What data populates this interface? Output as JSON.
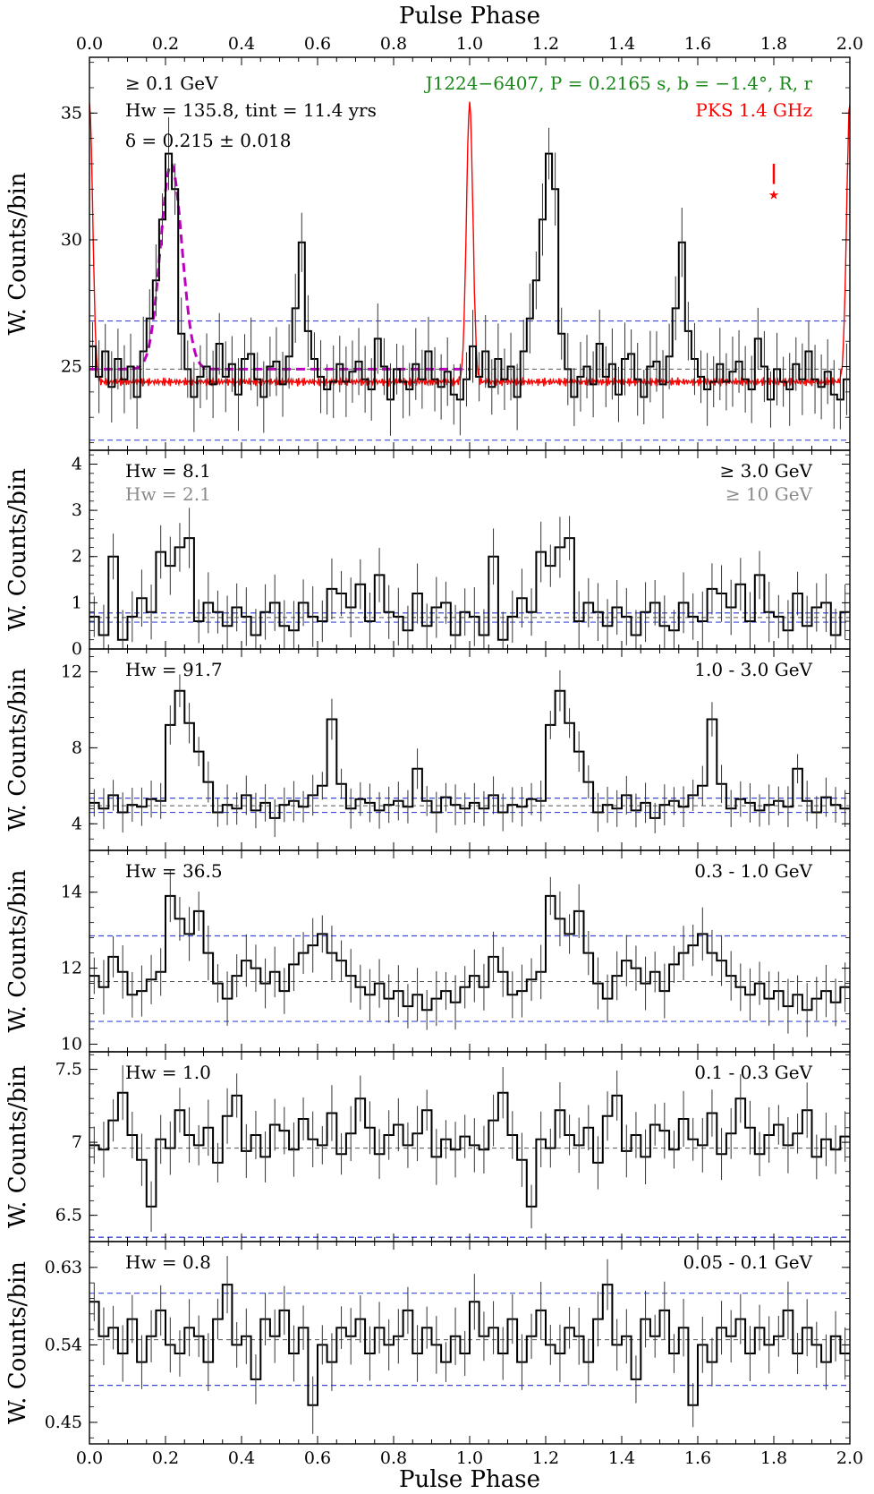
{
  "figure": {
    "x_top_label": "Pulse Phase",
    "x_bottom_label": "Pulse Phase",
    "y_label": "W. Counts/bin"
  },
  "chart_data": [
    {
      "type": "line",
      "panel": "all-energy",
      "ylabel": "W. Counts/bin",
      "xlabel": "Pulse Phase",
      "xlim": [
        0.0,
        2.0
      ],
      "ylim": [
        21.7,
        37.2
      ],
      "yticks": [
        25,
        30,
        35
      ],
      "xticks": [
        0.0,
        0.2,
        0.4,
        0.6,
        0.8,
        1.0,
        1.2,
        1.4,
        1.6,
        1.8,
        2.0
      ],
      "annotations": {
        "energy": "≥ 0.1 GeV",
        "hw": "Hw = 135.8, tint = 11.4 yrs",
        "delta": "δ = 0.215 ± 0.018",
        "pulsar": "J1224−6407, P = 0.2165 s, b = −1.4°, R, r",
        "radio": "PKS 1.4 GHz"
      },
      "background_level": 24.9,
      "bounds": [
        22.1,
        26.8
      ],
      "series": [
        {
          "name": "gamma-ray",
          "color": "#000000",
          "err": 1.2,
          "values": [
            25.8,
            24.6,
            25.6,
            24.2,
            25.3,
            24.5,
            25.0,
            23.8,
            25.6,
            26.9,
            28.4,
            30.8,
            33.4,
            32.0,
            26.3,
            24.9,
            23.8,
            24.6,
            25.0,
            24.3,
            25.9,
            24.6,
            25.1,
            23.9,
            25.3,
            25.5,
            24.5,
            23.8,
            25.0,
            25.2,
            24.3,
            25.4,
            27.3,
            29.9,
            26.4,
            25.3,
            24.6,
            24.1,
            24.4,
            25.1,
            24.4,
            24.8,
            25.2,
            24.5,
            24.1,
            26.1,
            25.0,
            23.7,
            24.9,
            24.4,
            24.1,
            25.1,
            24.5,
            25.6,
            24.5,
            24.2,
            24.8,
            23.9,
            23.7,
            24.5
          ]
        },
        {
          "name": "PKS 1.4 GHz",
          "color": "#ff0000"
        }
      ],
      "fit": {
        "name": "gaussian",
        "color": "#c000c0",
        "center": 0.215,
        "sigma": 0.028,
        "amplitude": 8.1,
        "base": 24.9
      }
    },
    {
      "type": "line",
      "panel": "≥ 3.0 GeV",
      "ylabel": "W. Counts/bin",
      "xlim": [
        0.0,
        2.0
      ],
      "ylim": [
        0.0,
        4.3
      ],
      "yticks": [
        0,
        1,
        2,
        3,
        4
      ],
      "annotations": {
        "hw": "Hw = 8.1",
        "hw2": "Hw = 2.1",
        "energy": "≥ 3.0 GeV",
        "energy2": "≥ 10 GeV"
      },
      "background_level": 0.68,
      "bounds": [
        0.58,
        0.78
      ],
      "series": [
        {
          "name": ">=3 GeV",
          "color": "#000000",
          "err": 0.55,
          "values": [
            0.7,
            0.3,
            2.0,
            0.2,
            0.7,
            1.1,
            0.8,
            2.1,
            1.8,
            2.2,
            2.4,
            0.6,
            1.0,
            0.8,
            0.5,
            0.9,
            0.7,
            0.3,
            0.8,
            1.0,
            0.5,
            0.4,
            1.0,
            0.7,
            0.6,
            1.3,
            1.2,
            0.9,
            1.4,
            0.6,
            1.6,
            0.8,
            0.7,
            0.4,
            1.2,
            0.5,
            0.9,
            1.0,
            0.3,
            0.8
          ]
        }
      ]
    },
    {
      "type": "line",
      "panel": "1.0 - 3.0 GeV",
      "ylabel": "W. Counts/bin",
      "xlim": [
        0.0,
        2.0
      ],
      "ylim": [
        2.6,
        13.2
      ],
      "yticks": [
        4,
        8,
        12
      ],
      "annotations": {
        "hw": "Hw = 91.7",
        "energy": "1.0 - 3.0 GeV"
      },
      "background_level": 4.95,
      "bounds": [
        4.6,
        5.35
      ],
      "series": [
        {
          "name": "1-3 GeV",
          "color": "#000000",
          "err": 0.9,
          "values": [
            5.1,
            4.8,
            5.5,
            4.6,
            5.0,
            4.9,
            5.3,
            5.2,
            9.2,
            11.0,
            9.3,
            7.8,
            6.2,
            4.6,
            5.0,
            4.8,
            5.5,
            4.7,
            5.1,
            4.3,
            5.0,
            5.2,
            4.9,
            5.5,
            6.0,
            9.5,
            6.1,
            4.8,
            5.3,
            5.1,
            4.7,
            5.0,
            5.2,
            4.9,
            6.9,
            5.2,
            4.6,
            5.4,
            5.0,
            4.8
          ]
        }
      ]
    },
    {
      "type": "line",
      "panel": "0.3 - 1.0 GeV",
      "ylabel": "W. Counts/bin",
      "xlim": [
        0.0,
        2.0
      ],
      "ylim": [
        9.8,
        15.1
      ],
      "yticks": [
        10,
        12,
        14
      ],
      "annotations": {
        "hw": "Hw = 36.5",
        "energy": "0.3 - 1.0 GeV"
      },
      "background_level": 11.65,
      "bounds": [
        10.6,
        12.85
      ],
      "series": [
        {
          "name": "0.3-1 GeV",
          "color": "#000000",
          "err": 0.6,
          "values": [
            11.8,
            11.5,
            12.3,
            11.9,
            11.3,
            11.4,
            11.7,
            11.9,
            13.9,
            13.3,
            12.9,
            13.5,
            12.4,
            11.6,
            11.2,
            11.8,
            12.2,
            12.0,
            11.6,
            11.9,
            11.4,
            12.1,
            12.4,
            12.6,
            12.9,
            12.4,
            12.2,
            11.8,
            11.5,
            11.3,
            11.6,
            11.2,
            11.4,
            11.0,
            11.3,
            10.9,
            11.2,
            11.4,
            11.1,
            11.5
          ]
        }
      ]
    },
    {
      "type": "line",
      "panel": "0.1 - 0.3 GeV",
      "ylabel": "W. Counts/bin",
      "xlim": [
        0.0,
        2.0
      ],
      "ylim": [
        6.32,
        7.62
      ],
      "yticks": [
        6.5,
        7.0,
        7.5
      ],
      "annotations": {
        "hw": "Hw = 1.0",
        "energy": "0.1 - 0.3 GeV"
      },
      "background_level": 6.96,
      "bounds": [
        6.35,
        6.35
      ],
      "series": [
        {
          "name": "0.1-0.3 GeV",
          "color": "#000000",
          "err": 0.16,
          "values": [
            6.98,
            6.95,
            7.15,
            7.34,
            7.05,
            6.88,
            6.56,
            7.02,
            6.96,
            7.22,
            7.05,
            6.98,
            7.1,
            6.86,
            7.18,
            7.32,
            6.94,
            7.05,
            6.9,
            7.12,
            7.08,
            6.95,
            7.16,
            7.02,
            6.98,
            7.2,
            6.92,
            7.06,
            7.3,
            7.1,
            6.92,
            7.05,
            7.12,
            6.98,
            7.06,
            7.22,
            6.9,
            7.02,
            6.95,
            7.04
          ]
        }
      ]
    },
    {
      "type": "line",
      "panel": "0.05 - 0.1 GeV",
      "ylabel": "W. Counts/bin",
      "xlabel": "Pulse Phase",
      "xlim": [
        0.0,
        2.0
      ],
      "ylim": [
        0.425,
        0.66
      ],
      "yticks": [
        0.45,
        0.54,
        0.63
      ],
      "annotations": {
        "hw": "Hw = 0.8",
        "energy": "0.05 - 0.1 GeV"
      },
      "background_level": 0.546,
      "bounds": [
        0.493,
        0.6
      ],
      "series": [
        {
          "name": "0.05-0.1 GeV",
          "color": "#000000",
          "err": 0.028,
          "values": [
            0.59,
            0.55,
            0.56,
            0.53,
            0.57,
            0.52,
            0.55,
            0.58,
            0.54,
            0.53,
            0.56,
            0.55,
            0.52,
            0.57,
            0.61,
            0.54,
            0.55,
            0.5,
            0.57,
            0.55,
            0.58,
            0.53,
            0.56,
            0.47,
            0.54,
            0.52,
            0.56,
            0.55,
            0.57,
            0.53,
            0.56,
            0.54,
            0.55,
            0.58,
            0.53,
            0.56,
            0.54,
            0.52,
            0.55,
            0.53
          ]
        }
      ]
    }
  ]
}
